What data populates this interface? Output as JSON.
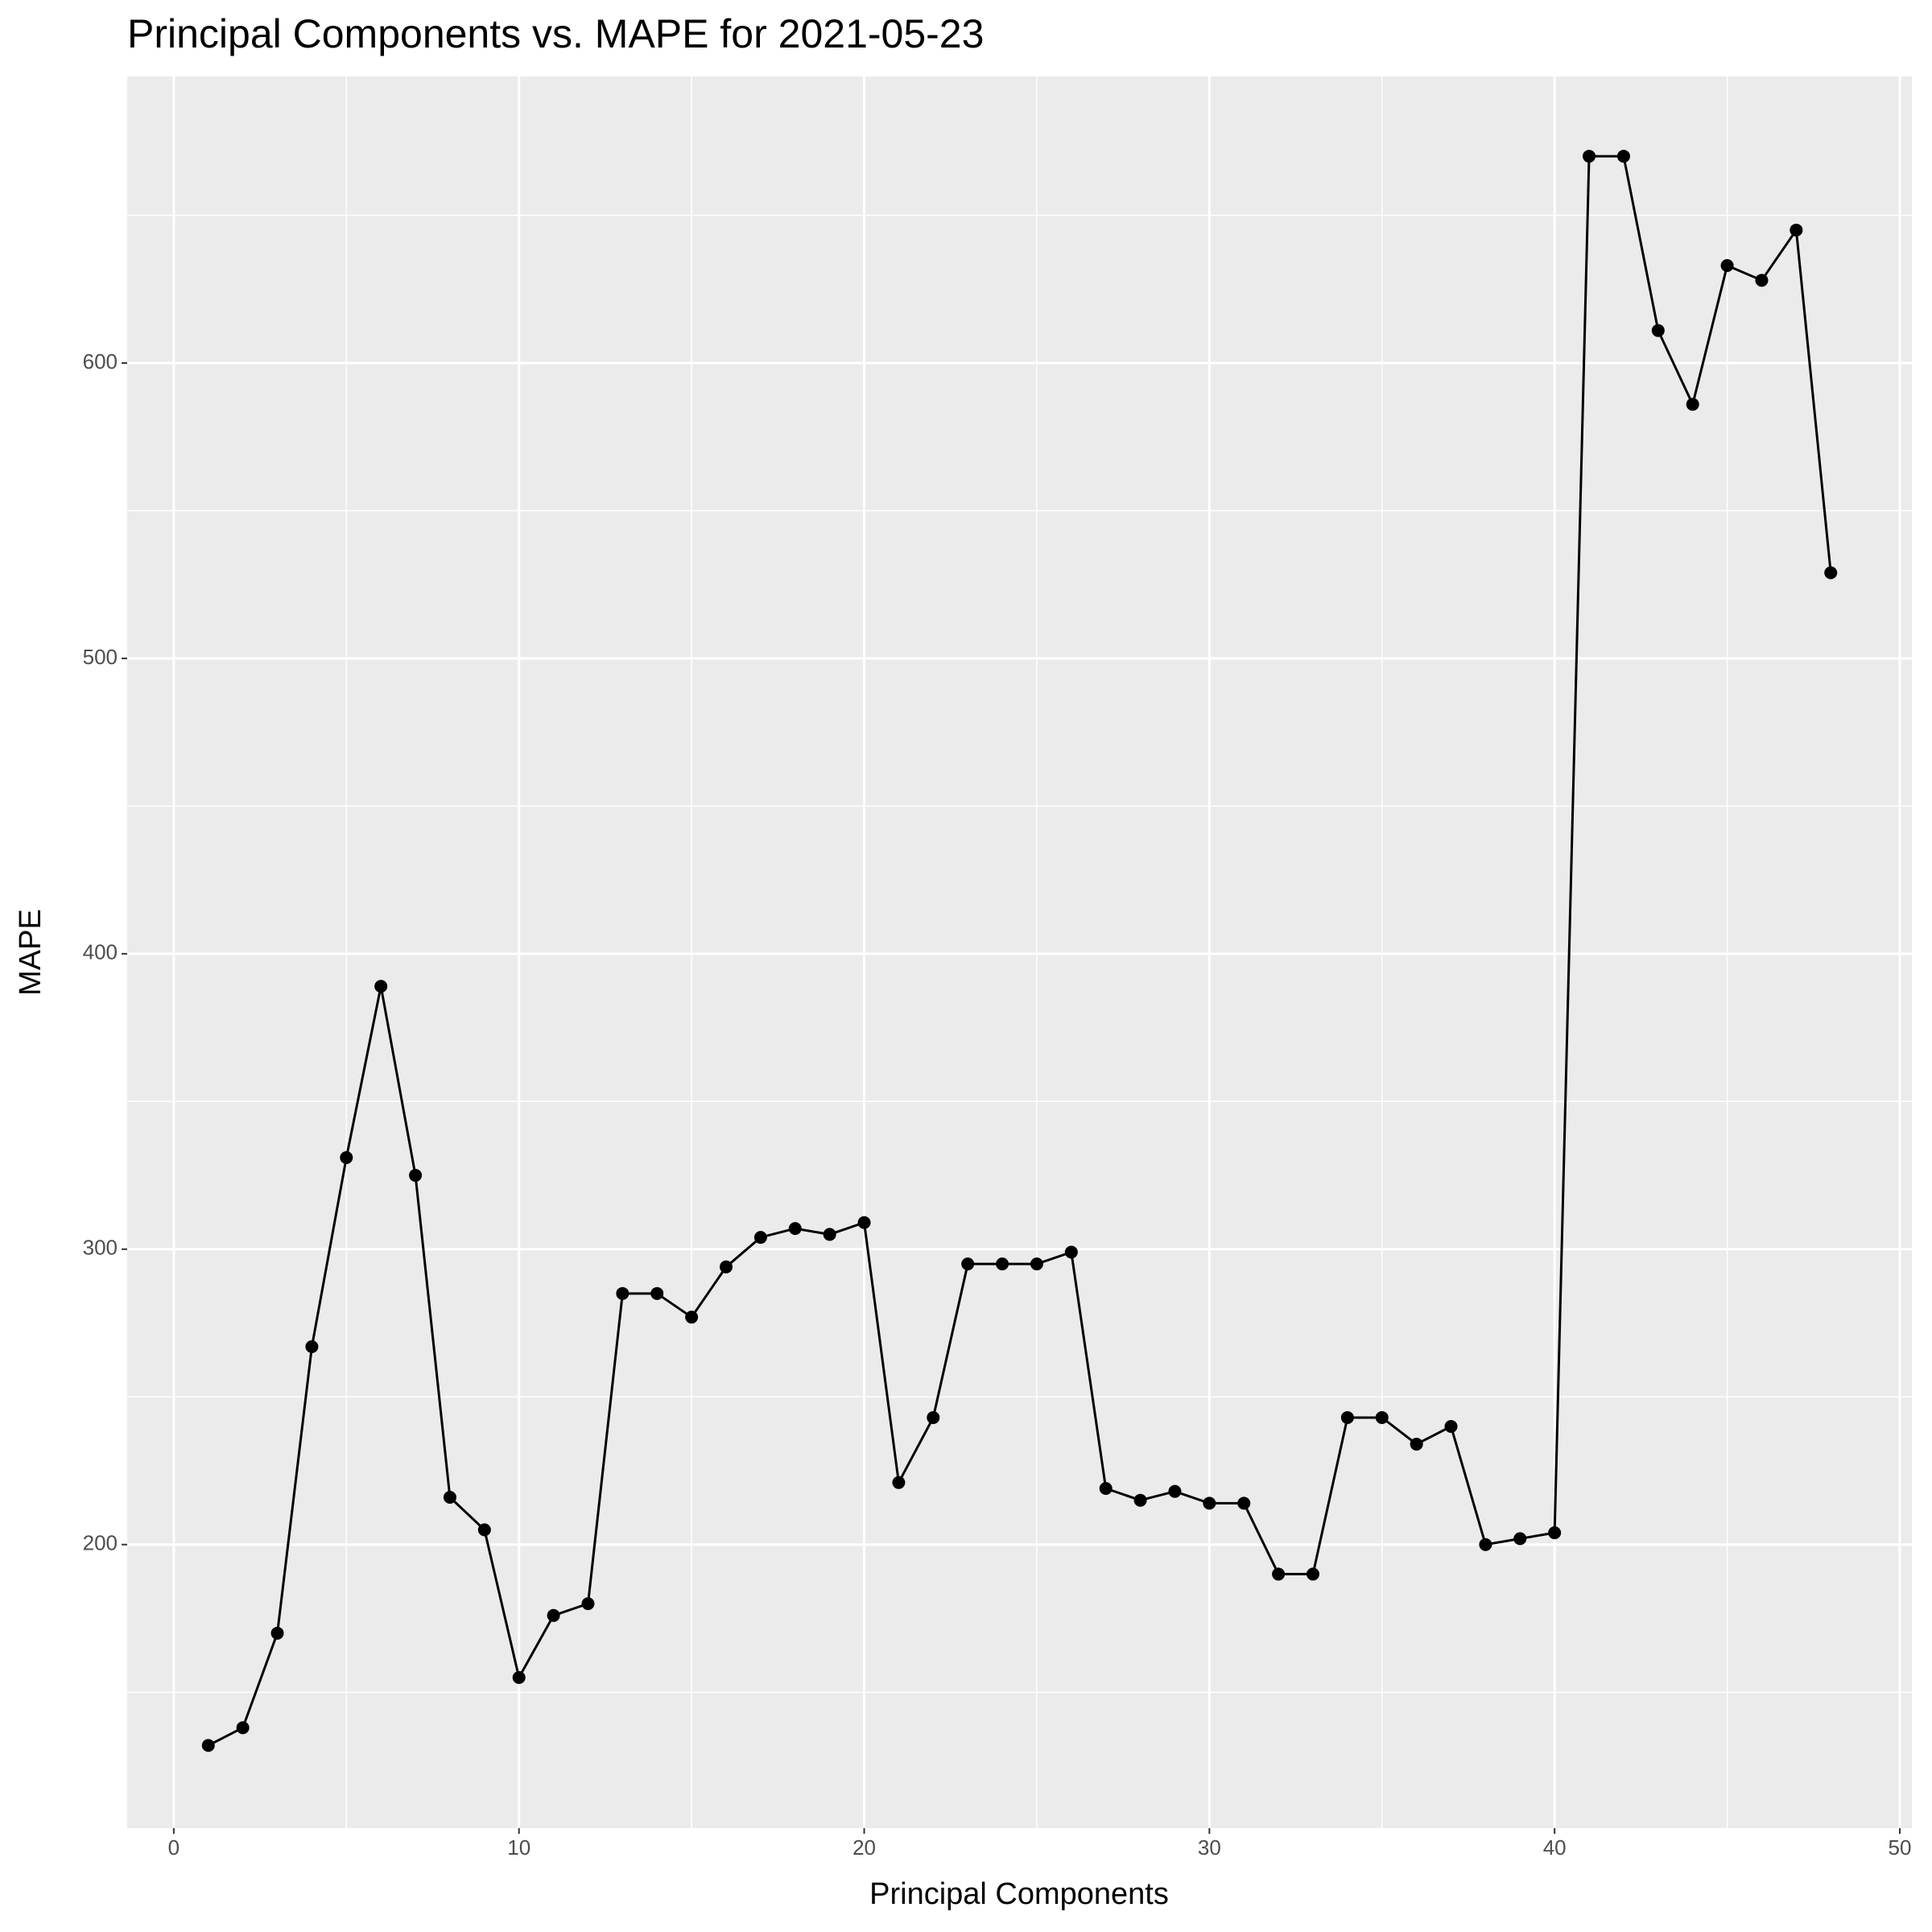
{
  "chart_data": {
    "type": "line",
    "title": "Principal Components vs. MAPE for 2021-05-23",
    "x_label": "Principal Components",
    "y_label": "MAPE",
    "x": [
      1,
      2,
      3,
      4,
      5,
      6,
      7,
      8,
      9,
      10,
      11,
      12,
      13,
      14,
      15,
      16,
      17,
      18,
      19,
      20,
      21,
      22,
      23,
      24,
      25,
      26,
      27,
      28,
      29,
      30,
      31,
      32,
      33,
      34,
      35,
      36,
      37,
      38,
      39,
      40,
      41,
      42,
      43,
      44,
      45,
      46,
      47,
      48
    ],
    "values": [
      132,
      138,
      170,
      267,
      331,
      389,
      325,
      216,
      205,
      155,
      176,
      180,
      285,
      285,
      277,
      294,
      304,
      307,
      305,
      309,
      221,
      243,
      295,
      295,
      295,
      299,
      219,
      215,
      218,
      214,
      214,
      190,
      190,
      243,
      243,
      234,
      240,
      200,
      202,
      204,
      670,
      670,
      611,
      586,
      633,
      628,
      645,
      529
    ],
    "color": "#000000",
    "xlim": [
      -1.35,
      50.35
    ],
    "xticks": [
      0,
      10,
      20,
      30,
      40,
      50
    ],
    "ylim": [
      104,
      697
    ],
    "yticks": [
      200,
      300,
      400,
      500,
      600
    ],
    "grid": true
  }
}
